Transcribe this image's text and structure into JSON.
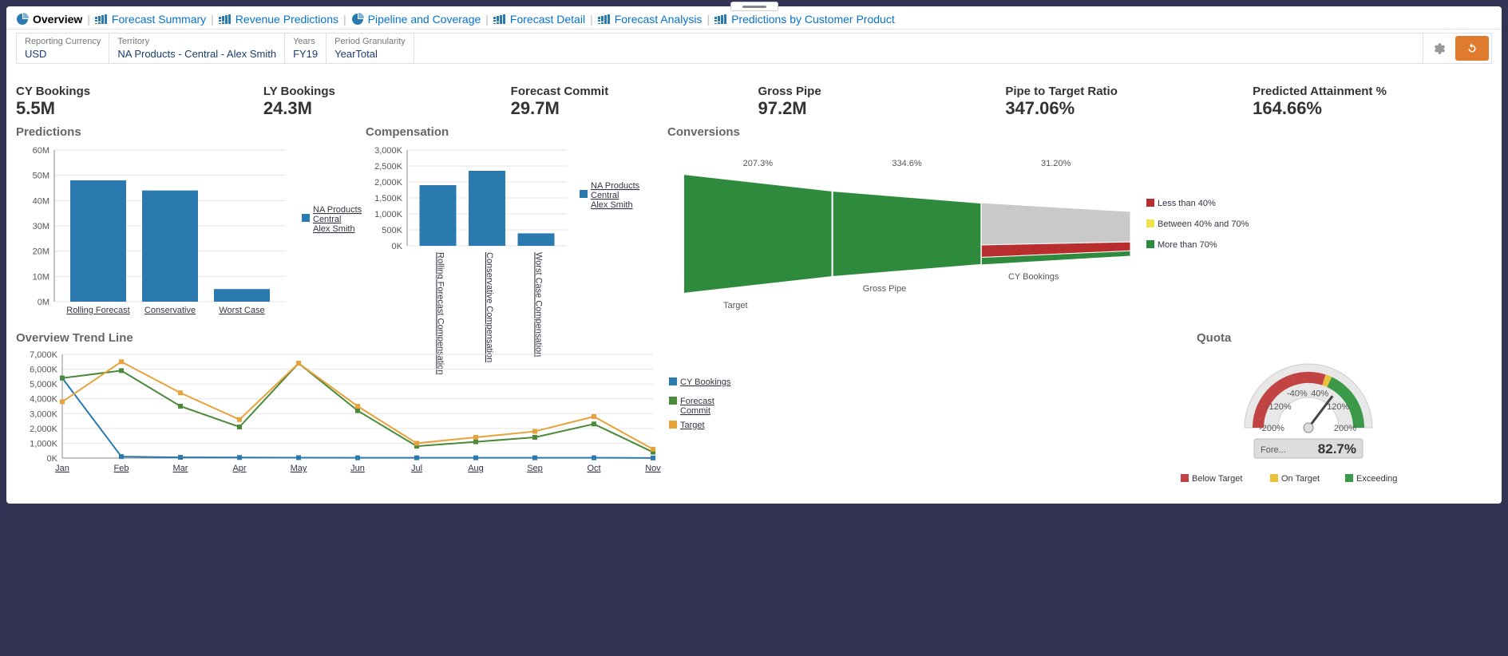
{
  "tabs": [
    {
      "label": "Overview",
      "active": true,
      "icon": "pie"
    },
    {
      "label": "Forecast Summary",
      "active": false,
      "icon": "bars"
    },
    {
      "label": "Revenue Predictions",
      "active": false,
      "icon": "bars"
    },
    {
      "label": "Pipeline and Coverage",
      "active": false,
      "icon": "pie"
    },
    {
      "label": "Forecast Detail",
      "active": false,
      "icon": "bars"
    },
    {
      "label": "Forecast Analysis",
      "active": false,
      "icon": "bars"
    },
    {
      "label": "Predictions by Customer Product",
      "active": false,
      "icon": "bars"
    }
  ],
  "filters": [
    {
      "label": "Reporting Currency",
      "value": "USD"
    },
    {
      "label": "Territory",
      "value": "NA Products - Central - Alex Smith"
    },
    {
      "label": "Years",
      "value": "FY19"
    },
    {
      "label": "Period Granularity",
      "value": "YearTotal"
    }
  ],
  "kpis": [
    {
      "label": "CY Bookings",
      "value": "5.5M"
    },
    {
      "label": "LY Bookings",
      "value": "24.3M"
    },
    {
      "label": "Forecast Commit",
      "value": "29.7M"
    },
    {
      "label": "Gross Pipe",
      "value": "97.2M"
    },
    {
      "label": "Pipe to Target Ratio",
      "value": "347.06%"
    },
    {
      "label": "Predicted Attainment %",
      "value": "164.66%"
    }
  ],
  "predictions": {
    "title": "Predictions",
    "type": "bar",
    "categories": [
      "Rolling Forecast",
      "Conservative",
      "Worst Case"
    ],
    "values": [
      48,
      44,
      5
    ],
    "ylim": [
      0,
      60
    ],
    "ytick_step": 10,
    "y_suffix": "M",
    "bar_color": "#2a7ab0",
    "grid_color": "#e5e5e5",
    "legend": "NA Products - Central - Alex Smith"
  },
  "compensation": {
    "title": "Compensation",
    "type": "bar",
    "categories": [
      "Rolling Forecast Compensation",
      "Conservative Compensation",
      "Worst Case Compensation"
    ],
    "values": [
      1900,
      2350,
      390
    ],
    "ylim": [
      0,
      3000
    ],
    "ytick_step": 500,
    "y_suffix": "K",
    "bar_color": "#2a7ab0",
    "legend": "NA Products - Central - Alex Smith"
  },
  "conversions": {
    "title": "Conversions",
    "type": "funnel",
    "stages": [
      {
        "label": "Target",
        "pct": "207.3%",
        "color": "#2e8b3d"
      },
      {
        "label": "Gross Pipe",
        "pct": "334.6%",
        "color": "#2e8b3d"
      },
      {
        "label": "CY Bookings",
        "pct": "31.20%",
        "split": [
          {
            "color": "#c9c9c9",
            "frac": 0.68
          },
          {
            "color": "#b82d2d",
            "frac": 0.2
          },
          {
            "color": "#2e8b3d",
            "frac": 0.12
          }
        ]
      }
    ],
    "legend": [
      {
        "color": "#b82d2d",
        "label": "Less than 40%"
      },
      {
        "color": "#f2e24b",
        "label": "Between 40% and 70%"
      },
      {
        "color": "#2e8b3d",
        "label": "More than 70%"
      }
    ]
  },
  "trend": {
    "title": "Overview Trend Line",
    "type": "line",
    "months": [
      "Jan",
      "Feb",
      "Mar",
      "Apr",
      "May",
      "Jun",
      "Jul",
      "Aug",
      "Sep",
      "Oct",
      "Nov"
    ],
    "ylim": [
      0,
      7000
    ],
    "ytick_step": 1000,
    "y_suffix": "K",
    "series": [
      {
        "name": "CY Bookings",
        "color": "#2a7ab0",
        "values": [
          5400,
          100,
          50,
          40,
          30,
          20,
          20,
          20,
          20,
          20,
          10
        ]
      },
      {
        "name": "Forecast Commit",
        "color": "#4a8a3a",
        "values": [
          5400,
          5900,
          3500,
          2100,
          6400,
          3200,
          800,
          1100,
          1400,
          2300,
          400
        ]
      },
      {
        "name": "Target",
        "color": "#e8a23a",
        "values": [
          3800,
          6500,
          4400,
          2600,
          6400,
          3500,
          1000,
          1400,
          1800,
          2800,
          600
        ]
      }
    ]
  },
  "quota": {
    "title": "Quota",
    "type": "gauge",
    "value": 82.7,
    "display": "82.7%",
    "prefix": "Fore...",
    "min": -200,
    "max": 200,
    "ticks": [
      "-200%",
      "-120%",
      "-40%",
      "40%",
      "120%",
      "200%"
    ],
    "bands": [
      {
        "from": -200,
        "to": -40,
        "color": "#c14343"
      },
      {
        "from": -40,
        "to": 40,
        "color": "#c14343"
      },
      {
        "from": 40,
        "to": 55,
        "color": "#e8c23a"
      },
      {
        "from": 55,
        "to": 200,
        "color": "#3a9a4a"
      }
    ],
    "legend": [
      {
        "color": "#c14343",
        "label": "Below Target"
      },
      {
        "color": "#e8c23a",
        "label": "On Target"
      },
      {
        "color": "#3a9a4a",
        "label": "Exceeding"
      }
    ]
  },
  "colors": {
    "link": "#0572ce",
    "bar": "#2a7ab0"
  }
}
